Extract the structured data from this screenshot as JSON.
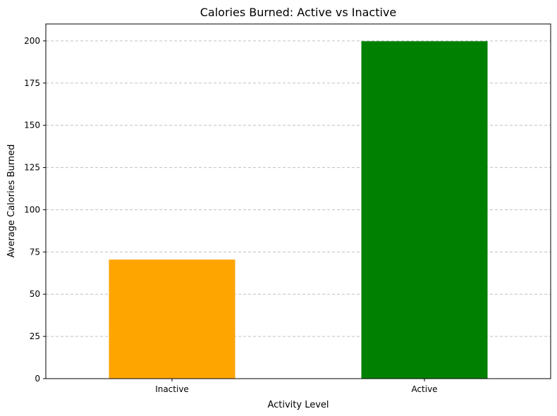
{
  "chart_data": {
    "type": "bar",
    "title": "Calories Burned: Active vs Inactive",
    "xlabel": "Activity Level",
    "ylabel": "Average Calories Burned",
    "categories": [
      "Inactive",
      "Active"
    ],
    "values": [
      70.5,
      199.8
    ],
    "colors": [
      "#ffa500",
      "#008000"
    ],
    "ylim": [
      0,
      210
    ],
    "yticks": [
      0,
      25,
      50,
      75,
      100,
      125,
      150,
      175,
      200
    ],
    "grid": "y-dashed",
    "grid_color": "#c0c0c0",
    "legend": "none"
  }
}
